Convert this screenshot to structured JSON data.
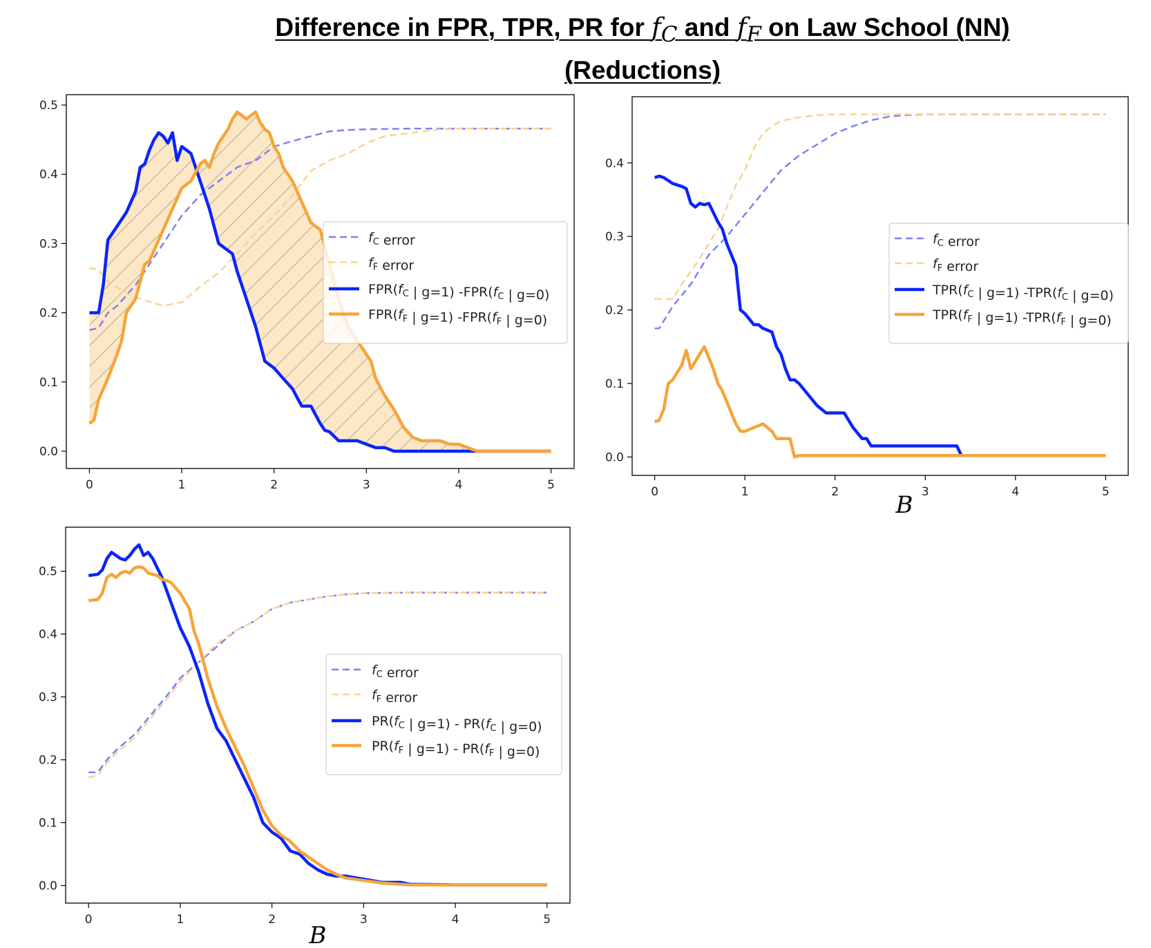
{
  "title": {
    "line1_prefix": "Difference in FPR, TPR, PR for ",
    "fc": "f",
    "fc_sub": "C",
    "and": " and ",
    "ff": "f",
    "ff_sub": "F",
    "line1_suffix": " on Law School (NN)",
    "line2": "(Reductions)"
  },
  "colors": {
    "blue_solid": "#0b24fb",
    "blue_dash": "#7f7ff6",
    "orange_solid": "#f5a53b",
    "orange_dash": "#f9d393",
    "fill": "#fce7c6"
  },
  "chart_data": [
    {
      "id": "fpr",
      "type": "line",
      "title": "",
      "xlabel": "",
      "ylabel": "",
      "xlim": [
        -0.25,
        5.25
      ],
      "ylim": [
        -0.025,
        0.515
      ],
      "xticks": [
        0,
        1,
        2,
        3,
        4,
        5
      ],
      "xtick_labels": [
        "0",
        "1",
        "2",
        "3",
        "4",
        "5"
      ],
      "yticks": [
        0.0,
        0.1,
        0.2,
        0.3,
        0.4,
        0.5
      ],
      "ytick_labels": [
        "0.0",
        "0.1",
        "0.2",
        "0.3",
        "0.4",
        "0.5"
      ],
      "legend_position": "center-right",
      "fill_between": [
        "fF_diff",
        "fC_diff"
      ],
      "series": [
        {
          "key": "fC_error",
          "name": "f_C error",
          "style": "dash",
          "color": "#7f7ff6",
          "x": [
            0,
            0.1,
            0.2,
            0.3,
            0.5,
            0.7,
            0.9,
            1.0,
            1.2,
            1.4,
            1.6,
            1.8,
            2.0,
            2.2,
            2.4,
            2.6,
            2.8,
            3.0,
            3.5,
            4.0,
            5.0
          ],
          "y": [
            0.175,
            0.178,
            0.2,
            0.21,
            0.24,
            0.28,
            0.32,
            0.34,
            0.37,
            0.39,
            0.41,
            0.42,
            0.44,
            0.448,
            0.455,
            0.462,
            0.464,
            0.465,
            0.466,
            0.466,
            0.466
          ]
        },
        {
          "key": "fF_error",
          "name": "f_F error",
          "style": "dash",
          "color": "#f9d393",
          "x": [
            0,
            0.1,
            0.2,
            0.4,
            0.6,
            0.8,
            1.0,
            1.2,
            1.4,
            1.6,
            1.8,
            2.0,
            2.2,
            2.4,
            2.6,
            2.8,
            3.0,
            3.2,
            3.5,
            3.8,
            4.0,
            5.0
          ],
          "y": [
            0.265,
            0.262,
            0.245,
            0.228,
            0.218,
            0.21,
            0.215,
            0.238,
            0.258,
            0.285,
            0.315,
            0.34,
            0.37,
            0.405,
            0.42,
            0.43,
            0.445,
            0.455,
            0.46,
            0.465,
            0.466,
            0.466
          ]
        },
        {
          "key": "fC_diff",
          "name": "FPR(f_C | g=1) -FPR(f_C | g=0)",
          "style": "solid",
          "color": "#0b24fb",
          "x": [
            0,
            0.1,
            0.15,
            0.2,
            0.3,
            0.4,
            0.45,
            0.5,
            0.55,
            0.6,
            0.65,
            0.7,
            0.75,
            0.8,
            0.85,
            0.9,
            0.95,
            1.0,
            1.05,
            1.1,
            1.2,
            1.25,
            1.3,
            1.4,
            1.5,
            1.55,
            1.6,
            1.7,
            1.8,
            1.9,
            2.0,
            2.1,
            2.2,
            2.3,
            2.4,
            2.5,
            2.55,
            2.6,
            2.7,
            2.8,
            2.9,
            3.0,
            3.1,
            3.2,
            3.3,
            3.4,
            3.5,
            3.6,
            3.8,
            4.0,
            4.5,
            5.0
          ],
          "y": [
            0.2,
            0.2,
            0.24,
            0.305,
            0.325,
            0.345,
            0.36,
            0.375,
            0.41,
            0.415,
            0.435,
            0.45,
            0.46,
            0.455,
            0.445,
            0.46,
            0.42,
            0.44,
            0.435,
            0.43,
            0.39,
            0.37,
            0.35,
            0.3,
            0.29,
            0.285,
            0.26,
            0.22,
            0.18,
            0.13,
            0.12,
            0.105,
            0.09,
            0.065,
            0.065,
            0.04,
            0.03,
            0.028,
            0.015,
            0.015,
            0.015,
            0.01,
            0.005,
            0.005,
            0.0,
            0.0,
            0.0,
            0.0,
            0.0,
            0.0,
            0.0,
            0.0
          ]
        },
        {
          "key": "fF_diff",
          "name": "FPR(f_F | g=1) -FPR(f_F | g=0)",
          "style": "solid",
          "color": "#f5a53b",
          "x": [
            0,
            0.05,
            0.1,
            0.15,
            0.2,
            0.3,
            0.35,
            0.4,
            0.45,
            0.5,
            0.6,
            0.65,
            0.7,
            0.8,
            0.9,
            1.0,
            1.05,
            1.1,
            1.2,
            1.25,
            1.3,
            1.35,
            1.4,
            1.45,
            1.5,
            1.55,
            1.6,
            1.65,
            1.7,
            1.75,
            1.8,
            1.85,
            1.9,
            1.95,
            2.0,
            2.05,
            2.1,
            2.2,
            2.3,
            2.4,
            2.5,
            2.6,
            2.7,
            2.8,
            2.9,
            3.0,
            3.05,
            3.1,
            3.2,
            3.3,
            3.4,
            3.5,
            3.6,
            3.7,
            3.8,
            3.9,
            4.0,
            4.1,
            4.2,
            4.3,
            4.4,
            4.6,
            5.0
          ],
          "y": [
            0.04,
            0.045,
            0.075,
            0.09,
            0.105,
            0.14,
            0.16,
            0.2,
            0.21,
            0.22,
            0.27,
            0.275,
            0.29,
            0.32,
            0.35,
            0.38,
            0.385,
            0.39,
            0.415,
            0.42,
            0.41,
            0.43,
            0.445,
            0.455,
            0.465,
            0.48,
            0.49,
            0.485,
            0.48,
            0.485,
            0.49,
            0.475,
            0.465,
            0.46,
            0.44,
            0.43,
            0.41,
            0.39,
            0.36,
            0.33,
            0.32,
            0.27,
            0.22,
            0.18,
            0.16,
            0.14,
            0.13,
            0.105,
            0.08,
            0.06,
            0.035,
            0.02,
            0.015,
            0.015,
            0.015,
            0.01,
            0.01,
            0.005,
            0.0,
            0.0,
            0.0,
            0.0,
            0.0
          ]
        }
      ]
    },
    {
      "id": "tpr",
      "type": "line",
      "title": "",
      "xlabel": "B",
      "ylabel": "",
      "xlim": [
        -0.25,
        5.25
      ],
      "ylim": [
        -0.025,
        0.49
      ],
      "xticks": [
        0,
        1,
        2,
        3,
        4,
        5
      ],
      "xtick_labels": [
        "0",
        "1",
        "2",
        "3",
        "4",
        "5"
      ],
      "yticks": [
        0.0,
        0.1,
        0.2,
        0.3,
        0.4
      ],
      "ytick_labels": [
        "0.0",
        "0.1",
        "0.2",
        "0.3",
        "0.4"
      ],
      "legend_position": "center-right",
      "series": [
        {
          "key": "fC_error",
          "name": "f_C error",
          "style": "dash",
          "color": "#7f7ff6",
          "x": [
            0,
            0.05,
            0.1,
            0.2,
            0.3,
            0.4,
            0.5,
            0.6,
            0.8,
            1.0,
            1.2,
            1.4,
            1.6,
            1.8,
            2.0,
            2.2,
            2.4,
            2.6,
            2.8,
            3.0,
            4.0,
            5.0
          ],
          "y": [
            0.175,
            0.175,
            0.185,
            0.205,
            0.22,
            0.235,
            0.255,
            0.275,
            0.3,
            0.33,
            0.36,
            0.39,
            0.41,
            0.425,
            0.44,
            0.45,
            0.458,
            0.463,
            0.465,
            0.466,
            0.466,
            0.466
          ]
        },
        {
          "key": "fF_error",
          "name": "f_F error",
          "style": "dash",
          "color": "#f9d393",
          "x": [
            0,
            0.1,
            0.2,
            0.3,
            0.5,
            0.7,
            0.8,
            0.9,
            1.0,
            1.1,
            1.2,
            1.3,
            1.4,
            1.6,
            1.8,
            2.0,
            2.5,
            3.0,
            5.0
          ],
          "y": [
            0.215,
            0.215,
            0.215,
            0.235,
            0.27,
            0.31,
            0.34,
            0.37,
            0.39,
            0.42,
            0.44,
            0.45,
            0.457,
            0.462,
            0.465,
            0.466,
            0.466,
            0.466,
            0.466
          ]
        },
        {
          "key": "fC_diff",
          "name": "TPR(f_C | g=1) -TPR(f_C | g=0)",
          "style": "solid",
          "color": "#0b24fb",
          "x": [
            0,
            0.05,
            0.1,
            0.15,
            0.2,
            0.25,
            0.3,
            0.35,
            0.4,
            0.45,
            0.5,
            0.55,
            0.6,
            0.7,
            0.75,
            0.8,
            0.85,
            0.9,
            0.95,
            1.0,
            1.1,
            1.15,
            1.2,
            1.3,
            1.35,
            1.4,
            1.45,
            1.5,
            1.55,
            1.6,
            1.7,
            1.8,
            1.9,
            2.0,
            2.1,
            2.15,
            2.2,
            2.3,
            2.35,
            2.4,
            2.6,
            2.8,
            3.0,
            3.2,
            3.35,
            3.4,
            3.5,
            4.0,
            5.0
          ],
          "y": [
            0.38,
            0.382,
            0.38,
            0.376,
            0.372,
            0.37,
            0.368,
            0.365,
            0.345,
            0.34,
            0.345,
            0.343,
            0.345,
            0.32,
            0.31,
            0.29,
            0.275,
            0.26,
            0.2,
            0.195,
            0.18,
            0.18,
            0.175,
            0.17,
            0.15,
            0.14,
            0.12,
            0.105,
            0.105,
            0.1,
            0.085,
            0.07,
            0.06,
            0.06,
            0.06,
            0.05,
            0.04,
            0.025,
            0.025,
            0.015,
            0.015,
            0.015,
            0.015,
            0.015,
            0.015,
            0.002,
            0.002,
            0.002,
            0.002
          ]
        },
        {
          "key": "fF_diff",
          "name": "TPR(f_F | g=1) -TPR(f_F | g=0)",
          "style": "solid",
          "color": "#f5a53b",
          "x": [
            0,
            0.05,
            0.1,
            0.15,
            0.2,
            0.25,
            0.3,
            0.35,
            0.4,
            0.45,
            0.5,
            0.55,
            0.6,
            0.65,
            0.7,
            0.75,
            0.8,
            0.85,
            0.9,
            0.95,
            1.0,
            1.1,
            1.2,
            1.3,
            1.35,
            1.4,
            1.45,
            1.5,
            1.55,
            1.6,
            1.7,
            2.0,
            3.0,
            4.0,
            5.0
          ],
          "y": [
            0.048,
            0.05,
            0.065,
            0.1,
            0.105,
            0.115,
            0.125,
            0.145,
            0.12,
            0.13,
            0.14,
            0.15,
            0.135,
            0.12,
            0.1,
            0.09,
            0.075,
            0.06,
            0.045,
            0.035,
            0.035,
            0.04,
            0.045,
            0.035,
            0.025,
            0.025,
            0.025,
            0.025,
            0.0,
            0.002,
            0.002,
            0.002,
            0.002,
            0.002,
            0.002
          ]
        }
      ]
    },
    {
      "id": "pr",
      "type": "line",
      "title": "",
      "xlabel": "B",
      "ylabel": "",
      "xlim": [
        -0.25,
        5.25
      ],
      "ylim": [
        -0.028,
        0.57
      ],
      "xticks": [
        0,
        1,
        2,
        3,
        4,
        5
      ],
      "xtick_labels": [
        "0",
        "1",
        "2",
        "3",
        "4",
        "5"
      ],
      "yticks": [
        0.0,
        0.1,
        0.2,
        0.3,
        0.4,
        0.5
      ],
      "ytick_labels": [
        "0.0",
        "0.1",
        "0.2",
        "0.3",
        "0.4",
        "0.5"
      ],
      "legend_position": "center-right",
      "series": [
        {
          "key": "fC_error",
          "name": "f_C error",
          "style": "dash",
          "color": "#7f7ff6",
          "x": [
            0,
            0.1,
            0.2,
            0.3,
            0.5,
            0.7,
            0.9,
            1.0,
            1.2,
            1.4,
            1.6,
            1.8,
            2.0,
            2.2,
            2.4,
            2.6,
            2.8,
            3.0,
            3.5,
            4.0,
            5.0
          ],
          "y": [
            0.18,
            0.18,
            0.2,
            0.215,
            0.24,
            0.275,
            0.31,
            0.33,
            0.355,
            0.38,
            0.405,
            0.42,
            0.44,
            0.45,
            0.455,
            0.46,
            0.463,
            0.465,
            0.466,
            0.466,
            0.466
          ]
        },
        {
          "key": "fF_error",
          "name": "f_F error",
          "style": "dash",
          "color": "#f9d393",
          "x": [
            0,
            0.1,
            0.2,
            0.3,
            0.5,
            0.7,
            0.9,
            1.0,
            1.2,
            1.4,
            1.6,
            1.8,
            2.0,
            2.2,
            2.4,
            2.6,
            2.8,
            3.0,
            3.5,
            4.0,
            5.0
          ],
          "y": [
            0.172,
            0.175,
            0.195,
            0.21,
            0.235,
            0.27,
            0.305,
            0.325,
            0.355,
            0.385,
            0.405,
            0.42,
            0.44,
            0.45,
            0.455,
            0.46,
            0.463,
            0.465,
            0.466,
            0.466,
            0.466
          ]
        },
        {
          "key": "fC_diff",
          "name": "PR(f_C | g=1) - PR(f_C | g=0)",
          "style": "solid",
          "color": "#0b24fb",
          "x": [
            0,
            0.1,
            0.15,
            0.2,
            0.25,
            0.3,
            0.35,
            0.4,
            0.45,
            0.5,
            0.55,
            0.6,
            0.65,
            0.7,
            0.75,
            0.8,
            0.85,
            0.9,
            1.0,
            1.1,
            1.2,
            1.3,
            1.4,
            1.5,
            1.6,
            1.7,
            1.8,
            1.9,
            2.0,
            2.1,
            2.2,
            2.3,
            2.4,
            2.5,
            2.6,
            2.7,
            2.8,
            3.0,
            3.2,
            3.4,
            3.5,
            4.0,
            5.0
          ],
          "y": [
            0.493,
            0.495,
            0.502,
            0.52,
            0.53,
            0.525,
            0.52,
            0.518,
            0.525,
            0.535,
            0.542,
            0.525,
            0.53,
            0.52,
            0.505,
            0.49,
            0.47,
            0.45,
            0.41,
            0.38,
            0.34,
            0.29,
            0.25,
            0.23,
            0.2,
            0.17,
            0.14,
            0.1,
            0.085,
            0.075,
            0.055,
            0.05,
            0.035,
            0.025,
            0.018,
            0.015,
            0.015,
            0.01,
            0.005,
            0.005,
            0.002,
            0.001,
            0.001
          ]
        },
        {
          "key": "fF_diff",
          "name": "PR(f_F | g=1) - PR(f_F | g=0)",
          "style": "solid",
          "color": "#f5a53b",
          "x": [
            0,
            0.1,
            0.15,
            0.2,
            0.25,
            0.3,
            0.35,
            0.4,
            0.45,
            0.5,
            0.55,
            0.6,
            0.65,
            0.7,
            0.75,
            0.8,
            0.85,
            0.9,
            1.0,
            1.1,
            1.15,
            1.2,
            1.3,
            1.4,
            1.5,
            1.6,
            1.7,
            1.8,
            1.9,
            2.0,
            2.1,
            2.2,
            2.3,
            2.4,
            2.5,
            2.6,
            2.7,
            2.8,
            3.0,
            3.2,
            3.4,
            3.5,
            4.0,
            5.0
          ],
          "y": [
            0.453,
            0.455,
            0.465,
            0.49,
            0.495,
            0.49,
            0.497,
            0.5,
            0.497,
            0.505,
            0.507,
            0.505,
            0.497,
            0.495,
            0.493,
            0.487,
            0.485,
            0.482,
            0.465,
            0.44,
            0.405,
            0.385,
            0.33,
            0.285,
            0.25,
            0.22,
            0.19,
            0.155,
            0.12,
            0.095,
            0.08,
            0.07,
            0.055,
            0.045,
            0.035,
            0.025,
            0.018,
            0.012,
            0.008,
            0.004,
            0.002,
            0.001,
            0.001,
            0.001
          ]
        }
      ]
    }
  ]
}
